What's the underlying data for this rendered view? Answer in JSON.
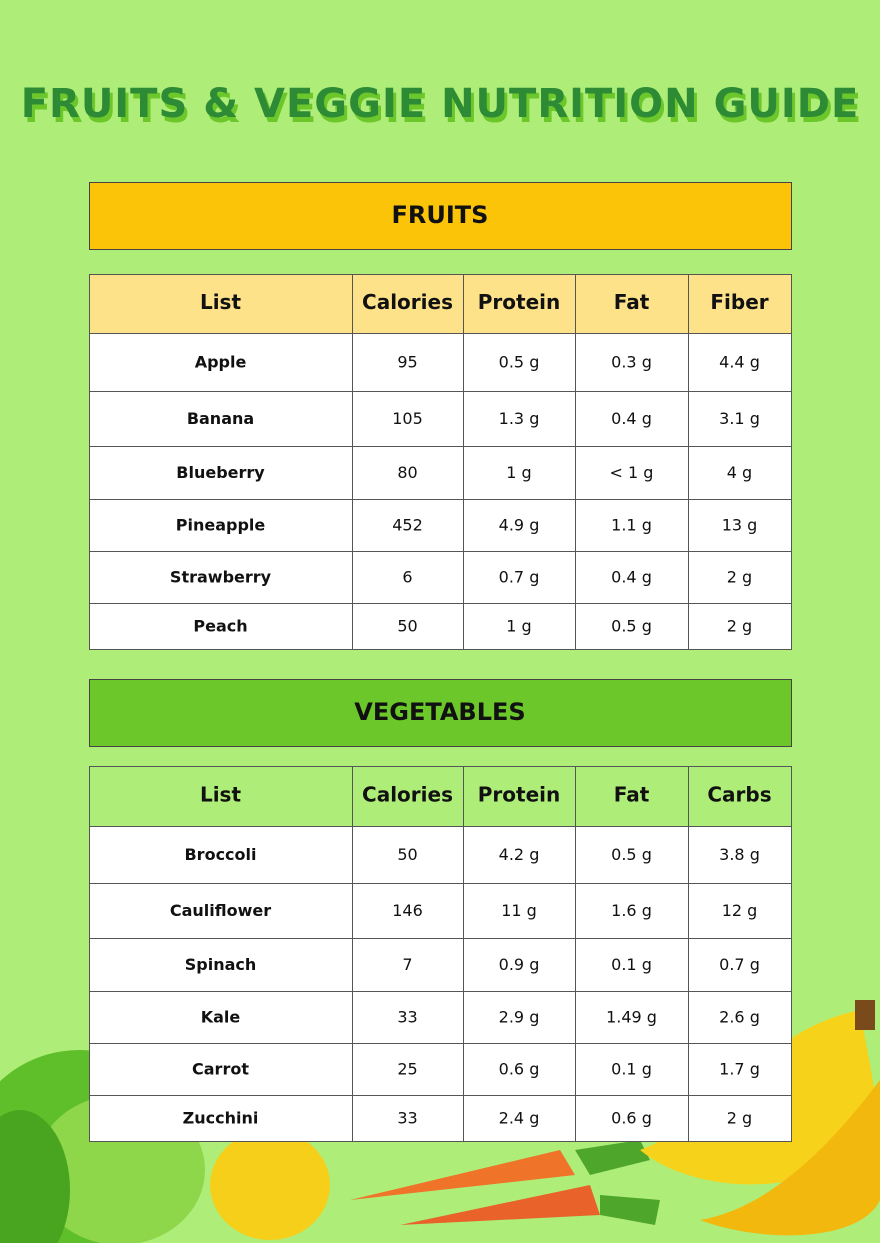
{
  "title": "FRUITS & VEGGIE NUTRITION GUIDE",
  "sections": [
    {
      "heading": "FRUITS",
      "columns": [
        "List",
        "Calories",
        "Protein",
        "Fat",
        "Fiber"
      ],
      "rows": [
        [
          "Apple",
          "95",
          "0.5 g",
          "0.3 g",
          "4.4 g"
        ],
        [
          "Banana",
          "105",
          "1.3 g",
          "0.4 g",
          "3.1 g"
        ],
        [
          "Blueberry",
          "80",
          "1 g",
          "< 1 g",
          "4 g"
        ],
        [
          "Pineapple",
          "452",
          "4.9 g",
          "1.1 g",
          "13 g"
        ],
        [
          "Strawberry",
          "6",
          "0.7 g",
          "0.4 g",
          "2 g"
        ],
        [
          "Peach",
          "50",
          "1 g",
          "0.5 g",
          "2 g"
        ]
      ]
    },
    {
      "heading": "VEGETABLES",
      "columns": [
        "List",
        "Calories",
        "Protein",
        "Fat",
        "Carbs"
      ],
      "rows": [
        [
          "Broccoli",
          "50",
          "4.2 g",
          "0.5 g",
          "3.8 g"
        ],
        [
          "Cauliflower",
          "146",
          "11 g",
          "1.6 g",
          "12 g"
        ],
        [
          "Spinach",
          "7",
          "0.9 g",
          "0.1 g",
          "0.7 g"
        ],
        [
          "Kale",
          "33",
          "2.9 g",
          "1.49 g",
          "2.6 g"
        ],
        [
          "Carrot",
          "25",
          "0.6 g",
          "0.1 g",
          "1.7 g"
        ],
        [
          "Zucchini",
          "33",
          "2.4 g",
          "0.6 g",
          "2 g"
        ]
      ]
    }
  ]
}
